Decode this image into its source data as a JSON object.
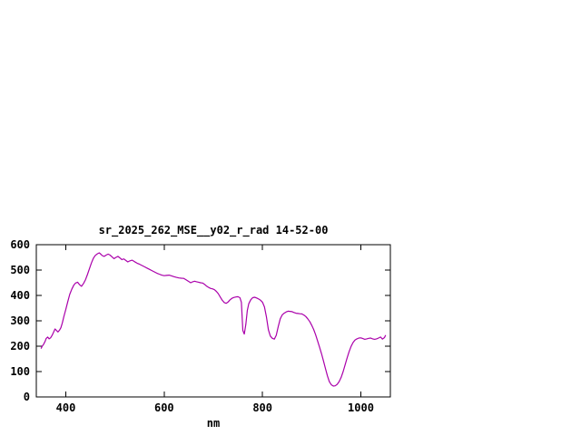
{
  "window": {
    "background": "#ffffff"
  },
  "chart_data": {
    "type": "line",
    "title": "sr_2025_262_MSE__y02_r_rad 14-52-00",
    "xlabel": "nm",
    "ylabel": "",
    "xlim": [
      340,
      1060
    ],
    "ylim": [
      0,
      600
    ],
    "xticks": [
      400,
      600,
      800,
      1000
    ],
    "yticks": [
      0,
      100,
      200,
      300,
      400,
      500,
      600
    ],
    "grid": "off",
    "legend": "none",
    "line_color": "#aa00aa",
    "series": [
      {
        "name": "sr_2025_262_MSE__y02_r_rad",
        "points": [
          [
            350,
            192
          ],
          [
            352,
            200
          ],
          [
            355,
            208
          ],
          [
            358,
            220
          ],
          [
            360,
            230
          ],
          [
            363,
            236
          ],
          [
            366,
            229
          ],
          [
            369,
            233
          ],
          [
            372,
            242
          ],
          [
            375,
            255
          ],
          [
            378,
            268
          ],
          [
            381,
            262
          ],
          [
            384,
            256
          ],
          [
            387,
            263
          ],
          [
            390,
            273
          ],
          [
            393,
            292
          ],
          [
            396,
            316
          ],
          [
            400,
            345
          ],
          [
            404,
            376
          ],
          [
            408,
            404
          ],
          [
            412,
            424
          ],
          [
            416,
            440
          ],
          [
            420,
            449
          ],
          [
            424,
            452
          ],
          [
            428,
            442
          ],
          [
            432,
            436
          ],
          [
            436,
            447
          ],
          [
            440,
            462
          ],
          [
            444,
            482
          ],
          [
            448,
            505
          ],
          [
            452,
            528
          ],
          [
            456,
            546
          ],
          [
            460,
            558
          ],
          [
            464,
            564
          ],
          [
            468,
            568
          ],
          [
            471,
            563
          ],
          [
            474,
            557
          ],
          [
            478,
            554
          ],
          [
            482,
            559
          ],
          [
            486,
            563
          ],
          [
            490,
            559
          ],
          [
            494,
            552
          ],
          [
            498,
            545
          ],
          [
            502,
            550
          ],
          [
            506,
            554
          ],
          [
            510,
            548
          ],
          [
            514,
            541
          ],
          [
            518,
            544
          ],
          [
            522,
            538
          ],
          [
            526,
            532
          ],
          [
            530,
            536
          ],
          [
            535,
            539
          ],
          [
            540,
            533
          ],
          [
            545,
            527
          ],
          [
            550,
            523
          ],
          [
            555,
            518
          ],
          [
            560,
            513
          ],
          [
            565,
            508
          ],
          [
            570,
            503
          ],
          [
            575,
            498
          ],
          [
            580,
            493
          ],
          [
            585,
            488
          ],
          [
            590,
            484
          ],
          [
            595,
            480
          ],
          [
            600,
            478
          ],
          [
            605,
            479
          ],
          [
            610,
            480
          ],
          [
            615,
            477
          ],
          [
            620,
            474
          ],
          [
            625,
            471
          ],
          [
            630,
            469
          ],
          [
            635,
            468
          ],
          [
            640,
            467
          ],
          [
            645,
            461
          ],
          [
            650,
            455
          ],
          [
            654,
            450
          ],
          [
            658,
            454
          ],
          [
            662,
            456
          ],
          [
            666,
            454
          ],
          [
            670,
            452
          ],
          [
            674,
            450
          ],
          [
            678,
            449
          ],
          [
            682,
            444
          ],
          [
            686,
            437
          ],
          [
            690,
            432
          ],
          [
            694,
            428
          ],
          [
            698,
            426
          ],
          [
            702,
            423
          ],
          [
            706,
            416
          ],
          [
            710,
            407
          ],
          [
            714,
            394
          ],
          [
            718,
            381
          ],
          [
            722,
            372
          ],
          [
            726,
            369
          ],
          [
            730,
            374
          ],
          [
            734,
            383
          ],
          [
            738,
            389
          ],
          [
            742,
            392
          ],
          [
            746,
            394
          ],
          [
            750,
            395
          ],
          [
            754,
            391
          ],
          [
            757,
            373
          ],
          [
            760,
            262
          ],
          [
            763,
            248
          ],
          [
            766,
            286
          ],
          [
            769,
            340
          ],
          [
            772,
            367
          ],
          [
            776,
            383
          ],
          [
            780,
            391
          ],
          [
            784,
            393
          ],
          [
            788,
            390
          ],
          [
            792,
            386
          ],
          [
            796,
            381
          ],
          [
            800,
            373
          ],
          [
            804,
            355
          ],
          [
            808,
            315
          ],
          [
            812,
            264
          ],
          [
            816,
            240
          ],
          [
            820,
            231
          ],
          [
            824,
            228
          ],
          [
            828,
            243
          ],
          [
            832,
            277
          ],
          [
            836,
            308
          ],
          [
            840,
            323
          ],
          [
            844,
            330
          ],
          [
            848,
            335
          ],
          [
            852,
            338
          ],
          [
            856,
            337
          ],
          [
            860,
            336
          ],
          [
            864,
            333
          ],
          [
            868,
            330
          ],
          [
            872,
            329
          ],
          [
            876,
            328
          ],
          [
            880,
            327
          ],
          [
            884,
            323
          ],
          [
            888,
            317
          ],
          [
            892,
            308
          ],
          [
            896,
            297
          ],
          [
            900,
            283
          ],
          [
            904,
            266
          ],
          [
            908,
            245
          ],
          [
            912,
            221
          ],
          [
            916,
            196
          ],
          [
            920,
            170
          ],
          [
            924,
            142
          ],
          [
            928,
            112
          ],
          [
            932,
            83
          ],
          [
            936,
            60
          ],
          [
            940,
            48
          ],
          [
            944,
            43
          ],
          [
            948,
            44
          ],
          [
            952,
            50
          ],
          [
            956,
            61
          ],
          [
            960,
            77
          ],
          [
            964,
            100
          ],
          [
            968,
            127
          ],
          [
            972,
            153
          ],
          [
            976,
            178
          ],
          [
            980,
            199
          ],
          [
            984,
            214
          ],
          [
            988,
            224
          ],
          [
            992,
            229
          ],
          [
            996,
            232
          ],
          [
            1000,
            233
          ],
          [
            1004,
            230
          ],
          [
            1008,
            227
          ],
          [
            1012,
            229
          ],
          [
            1016,
            231
          ],
          [
            1020,
            232
          ],
          [
            1024,
            229
          ],
          [
            1028,
            227
          ],
          [
            1032,
            229
          ],
          [
            1036,
            232
          ],
          [
            1040,
            236
          ],
          [
            1044,
            228
          ],
          [
            1048,
            234
          ],
          [
            1050,
            242
          ]
        ]
      }
    ]
  }
}
